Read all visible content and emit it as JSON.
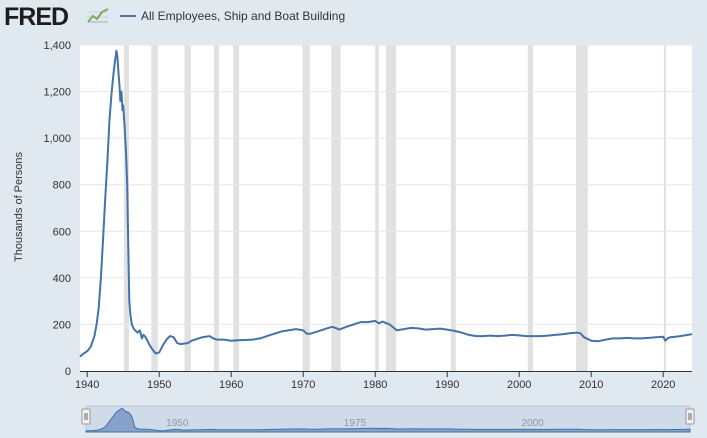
{
  "header": {
    "logo_text": "FRED",
    "logo_icon": "fred-line-chart-icon",
    "legend_label": "All Employees, Ship and Boat Building"
  },
  "colors": {
    "series": "#4572a7",
    "recession": "#e1e1e1",
    "background": "#e1e9f0",
    "plot_background": "#ffffff",
    "gridline": "#e6e6e6",
    "navigator_fill": "#6f8fc0"
  },
  "chart_data": {
    "type": "line",
    "title": "All Employees, Ship and Boat Building",
    "xlabel": "",
    "ylabel": "Thousands of Persons",
    "xlim": [
      1939.0,
      2024.0
    ],
    "ylim": [
      0,
      1400
    ],
    "x_ticks": [
      {
        "value": 1940,
        "label": "1940"
      },
      {
        "value": 1950,
        "label": "1950"
      },
      {
        "value": 1960,
        "label": "1960"
      },
      {
        "value": 1970,
        "label": "1970"
      },
      {
        "value": 1980,
        "label": "1980"
      },
      {
        "value": 1990,
        "label": "1990"
      },
      {
        "value": 2000,
        "label": "2000"
      },
      {
        "value": 2010,
        "label": "2010"
      },
      {
        "value": 2020,
        "label": "2020"
      }
    ],
    "y_ticks": [
      {
        "value": 0,
        "label": "0"
      },
      {
        "value": 200,
        "label": "200"
      },
      {
        "value": 400,
        "label": "400"
      },
      {
        "value": 600,
        "label": "600"
      },
      {
        "value": 800,
        "label": "800"
      },
      {
        "value": 1000,
        "label": "1,000"
      },
      {
        "value": 1200,
        "label": "1,200"
      },
      {
        "value": 1400,
        "label": "1,400"
      }
    ],
    "recessions": [
      [
        1945.1,
        1945.8
      ],
      [
        1948.9,
        1949.8
      ],
      [
        1953.5,
        1954.4
      ],
      [
        1957.6,
        1958.3
      ],
      [
        1960.3,
        1961.1
      ],
      [
        1969.9,
        1970.9
      ],
      [
        1973.9,
        1975.2
      ],
      [
        1980.0,
        1980.5
      ],
      [
        1981.5,
        1982.9
      ],
      [
        1990.5,
        1991.2
      ],
      [
        2001.2,
        2001.9
      ],
      [
        2007.9,
        2009.5
      ],
      [
        2020.1,
        2020.3
      ]
    ],
    "series": [
      {
        "name": "All Employees, Ship and Boat Building",
        "x": [
          1939.0,
          1939.5,
          1940.0,
          1940.5,
          1941.0,
          1941.3,
          1941.6,
          1941.9,
          1942.2,
          1942.5,
          1942.8,
          1943.1,
          1943.4,
          1943.7,
          1943.9,
          1944.05,
          1944.2,
          1944.35,
          1944.5,
          1944.6,
          1944.75,
          1944.9,
          1945.0,
          1945.2,
          1945.4,
          1945.55,
          1945.7,
          1945.85,
          1946.0,
          1946.2,
          1946.5,
          1946.8,
          1947.0,
          1947.3,
          1947.6,
          1947.8,
          1948.0,
          1948.3,
          1948.6,
          1949.0,
          1949.5,
          1950.0,
          1950.5,
          1951.0,
          1951.5,
          1952.0,
          1952.5,
          1953.0,
          1953.5,
          1954.0,
          1954.5,
          1955.0,
          1956.0,
          1957.0,
          1957.5,
          1958.0,
          1959.0,
          1960.0,
          1961.0,
          1962.0,
          1963.0,
          1964.0,
          1965.0,
          1966.0,
          1967.0,
          1968.0,
          1969.0,
          1970.0,
          1970.5,
          1971.0,
          1972.0,
          1973.0,
          1974.0,
          1974.5,
          1975.0,
          1976.0,
          1977.0,
          1978.0,
          1979.0,
          1980.0,
          1980.5,
          1981.0,
          1982.0,
          1983.0,
          1984.0,
          1985.0,
          1986.0,
          1987.0,
          1988.0,
          1989.0,
          1990.0,
          1991.0,
          1992.0,
          1993.0,
          1994.0,
          1995.0,
          1996.0,
          1997.0,
          1998.0,
          1999.0,
          2000.0,
          2001.0,
          2002.0,
          2003.0,
          2004.0,
          2005.0,
          2006.0,
          2007.0,
          2008.0,
          2008.5,
          2009.0,
          2010.0,
          2011.0,
          2012.0,
          2013.0,
          2014.0,
          2015.0,
          2016.0,
          2017.0,
          2018.0,
          2019.0,
          2020.0,
          2020.3,
          2020.6,
          2021.0,
          2022.0,
          2023.0,
          2024.0
        ],
        "values": [
          62,
          75,
          85,
          105,
          150,
          200,
          270,
          400,
          560,
          740,
          900,
          1080,
          1200,
          1290,
          1340,
          1375,
          1350,
          1280,
          1220,
          1160,
          1200,
          1120,
          1140,
          1050,
          930,
          800,
          550,
          300,
          240,
          200,
          180,
          170,
          165,
          175,
          140,
          155,
          150,
          135,
          115,
          95,
          75,
          80,
          110,
          135,
          150,
          145,
          120,
          115,
          118,
          120,
          130,
          135,
          145,
          150,
          140,
          135,
          135,
          130,
          132,
          133,
          135,
          140,
          150,
          160,
          170,
          175,
          180,
          175,
          160,
          160,
          170,
          180,
          190,
          185,
          178,
          190,
          200,
          210,
          210,
          215,
          205,
          212,
          200,
          175,
          180,
          185,
          183,
          178,
          180,
          182,
          178,
          172,
          165,
          155,
          150,
          150,
          152,
          150,
          152,
          155,
          153,
          150,
          150,
          150,
          152,
          155,
          158,
          162,
          165,
          162,
          145,
          130,
          128,
          135,
          140,
          140,
          142,
          140,
          140,
          142,
          145,
          147,
          130,
          140,
          145,
          148,
          153,
          158
        ]
      }
    ],
    "navigator": {
      "labels": [
        {
          "value": 1950,
          "label": "1950"
        },
        {
          "value": 1975,
          "label": "1975"
        },
        {
          "value": 2000,
          "label": "2000"
        }
      ],
      "left_handle_icon": "range-handle-icon",
      "right_handle_icon": "range-handle-icon"
    }
  }
}
